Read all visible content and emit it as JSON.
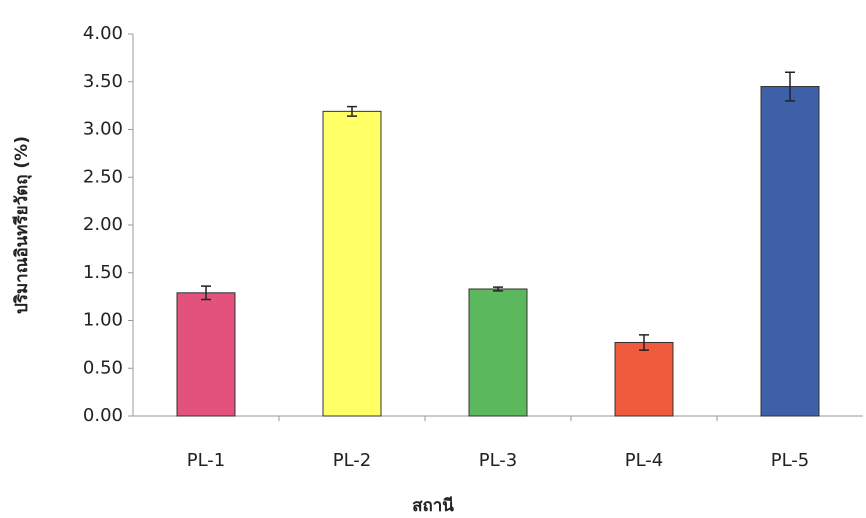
{
  "chart_data": {
    "type": "bar",
    "x_label": "สถานี",
    "y_label": "ปริมาณอินทรียวัตถุ (%)",
    "categories": [
      "PL-1",
      "PL-2",
      "PL-3",
      "PL-4",
      "PL-5"
    ],
    "values": [
      1.29,
      3.19,
      1.33,
      0.77,
      3.45
    ],
    "errors": [
      0.07,
      0.05,
      0.02,
      0.08,
      0.15
    ],
    "colors": [
      "#e2527c",
      "#ffff66",
      "#5cb85c",
      "#ef5b3c",
      "#3e60a9"
    ],
    "ylim": [
      0,
      4
    ],
    "yticks": [
      {
        "value": 0,
        "label": "0.00"
      },
      {
        "value": 0.5,
        "label": "0.50"
      },
      {
        "value": 1,
        "label": "1.00"
      },
      {
        "value": 1.5,
        "label": "1.50"
      },
      {
        "value": 2,
        "label": "2.00"
      },
      {
        "value": 2.5,
        "label": "2.50"
      },
      {
        "value": 3,
        "label": "3.00"
      },
      {
        "value": 3.5,
        "label": "3.50"
      },
      {
        "value": 4,
        "label": "4.00"
      }
    ]
  }
}
